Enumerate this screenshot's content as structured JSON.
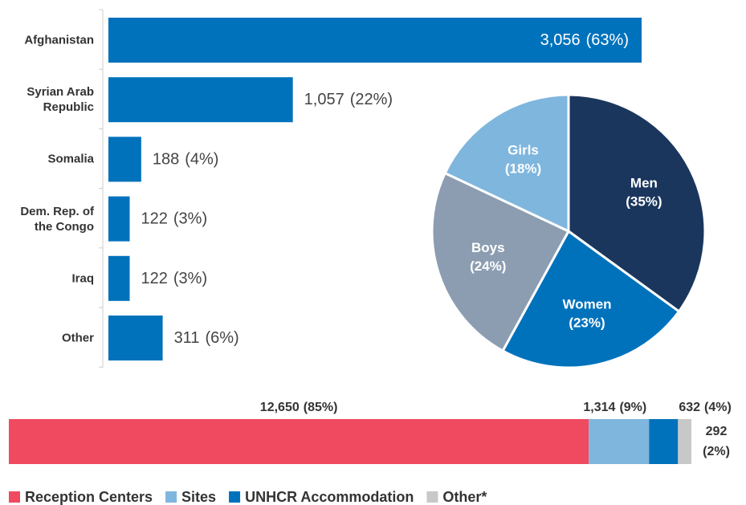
{
  "chart_data": [
    {
      "type": "hbar",
      "categories": [
        "Afghanistan",
        "Syrian Arab Republic",
        "Somalia",
        "Dem. Rep. of the Congo",
        "Iraq",
        "Other"
      ],
      "values": [
        3056,
        1057,
        188,
        122,
        122,
        311
      ],
      "value_labels": [
        "3,056",
        "1,057",
        "188",
        "122",
        "122",
        "311"
      ],
      "shares": [
        63,
        22,
        4,
        3,
        3,
        6
      ],
      "share_labels": [
        "(63%)",
        "(22%)",
        "(4%)",
        "(3%)",
        "(3%)",
        "(6%)"
      ],
      "color": "#0072bc",
      "xlim": [
        0,
        3056
      ]
    },
    {
      "type": "pie",
      "categories": [
        "Men",
        "Women",
        "Boys",
        "Girls"
      ],
      "values": [
        35,
        23,
        24,
        18
      ],
      "value_labels": [
        "(35%)",
        "(23%)",
        "(24%)",
        "(18%)"
      ],
      "colors": [
        "#1b365d",
        "#0072bc",
        "#8c9db1",
        "#7fb6de"
      ]
    },
    {
      "type": "stacked-hbar",
      "series": [
        {
          "name": "Reception Centers",
          "color": "#ef4a60",
          "values": [
            12650
          ],
          "value_labels": [
            "12,650"
          ],
          "shares": [
            85
          ],
          "share_labels": [
            "(85%)"
          ]
        },
        {
          "name": "Sites",
          "color": "#7fb6de",
          "values": [
            1314
          ],
          "value_labels": [
            "1,314"
          ],
          "shares": [
            9
          ],
          "share_labels": [
            "(9%)"
          ]
        },
        {
          "name": "UNHCR Accommodation",
          "color": "#0072bc",
          "values": [
            632
          ],
          "value_labels": [
            "632"
          ],
          "shares": [
            4
          ],
          "share_labels": [
            "(4%)"
          ]
        },
        {
          "name": "Other*",
          "color": "#c8c8c8",
          "values": [
            292
          ],
          "value_labels": [
            "292"
          ],
          "shares": [
            2
          ],
          "share_labels": [
            "(2%)"
          ]
        }
      ],
      "xlim": [
        0,
        14888
      ],
      "legend": "bottom"
    }
  ]
}
